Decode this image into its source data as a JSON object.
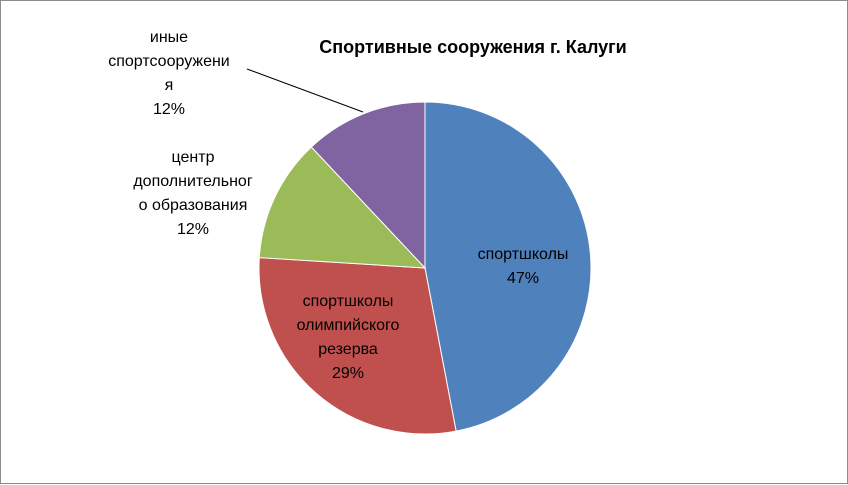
{
  "chart_data": {
    "type": "pie",
    "title": "Спортивные сооружения г. Калуги",
    "start_angle_deg": 0,
    "direction": "clockwise",
    "slices": [
      {
        "category": "спортшколы",
        "percent_label": "47%",
        "value": 47,
        "color": "#4f81bd",
        "label_lines": [
          "спортшколы",
          "47%"
        ]
      },
      {
        "category": "спортшколы олимпийского резерва",
        "percent_label": "29%",
        "value": 29,
        "color": "#c0504d",
        "label_lines": [
          "спортшколы",
          "олимпийского",
          "резерва",
          "29%"
        ]
      },
      {
        "category": "центр дополнительного образования",
        "percent_label": "12%",
        "value": 12,
        "color": "#9bbb59",
        "label_lines": [
          "центр",
          "дополнительног",
          "о образования",
          "12%"
        ]
      },
      {
        "category": "иные спортсооружения",
        "percent_label": "12%",
        "value": 12,
        "color": "#8064a2",
        "label_lines": [
          "иные",
          "спортсооружени",
          "я",
          "12%"
        ]
      }
    ],
    "legend": "none"
  }
}
